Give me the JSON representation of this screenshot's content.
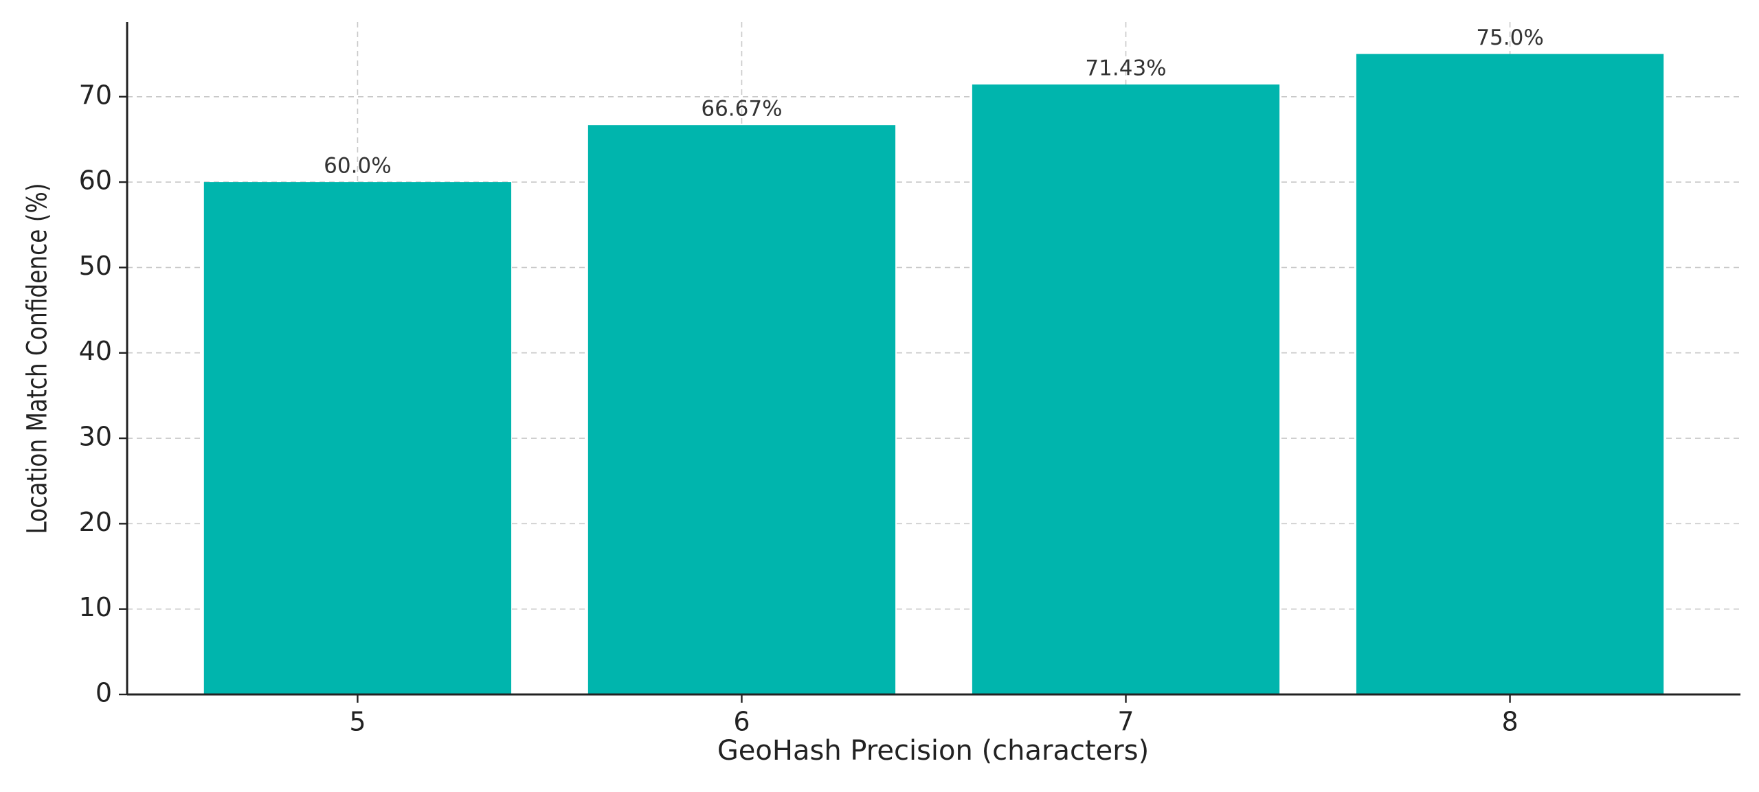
{
  "chart_data": {
    "type": "bar",
    "x_label": "GeoHash Precision (characters)",
    "y_label": "Location Match Confidence (%)",
    "categories": [
      "5",
      "6",
      "7",
      "8"
    ],
    "values": [
      60,
      66.67,
      71.43,
      75
    ],
    "value_labels": [
      "60.0%",
      "66.67%",
      "71.43%",
      "75.0%"
    ],
    "color": "#00b5ad",
    "ylim": [
      0,
      78.75
    ],
    "yticks": [
      0,
      10,
      20,
      30,
      40,
      50,
      60,
      70
    ],
    "grid": true
  }
}
